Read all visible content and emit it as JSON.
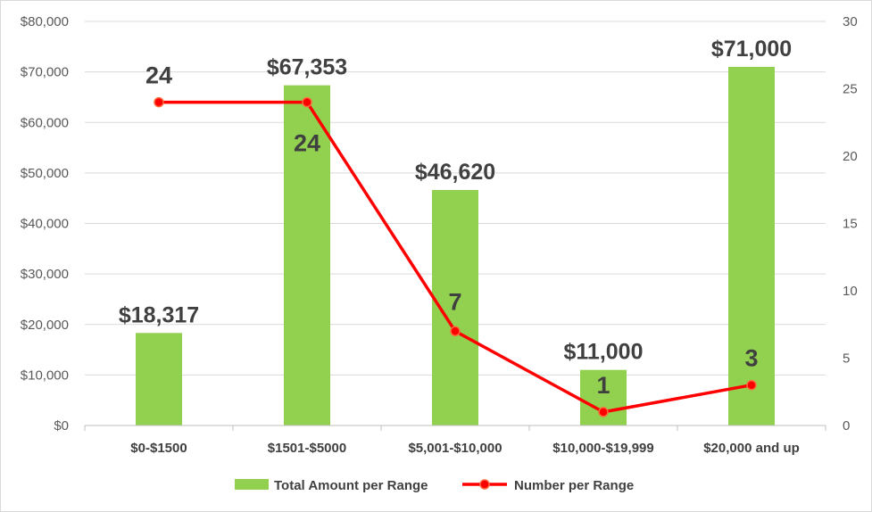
{
  "chart_data": {
    "type": "bar",
    "title": "",
    "xlabel": "",
    "ylabel": "",
    "y2label": "",
    "categories": [
      "$0-$1500",
      "$1501-$5000",
      "$5,001-$10,000",
      "$10,000-$19,999",
      "$20,000 and up"
    ],
    "series": [
      {
        "name": "Total Amount per Range",
        "type": "bar",
        "axis": "left",
        "color": "#92d050",
        "values": [
          18317,
          67353,
          46620,
          11000,
          71000
        ],
        "labels": [
          "$18,317",
          "$67,353",
          "$46,620",
          "$11,000",
          "$71,000"
        ]
      },
      {
        "name": "Number per Range",
        "type": "line",
        "axis": "right",
        "color": "#ff0000",
        "values": [
          24,
          24,
          7,
          1,
          3
        ],
        "labels": [
          "24",
          "24",
          "7",
          "1",
          "3"
        ]
      }
    ],
    "ylim": [
      0,
      80000
    ],
    "y_ticks": [
      "$0",
      "$10,000",
      "$20,000",
      "$30,000",
      "$40,000",
      "$50,000",
      "$60,000",
      "$70,000",
      "$80,000"
    ],
    "y2lim": [
      0,
      30
    ],
    "y2_ticks": [
      "0",
      "5",
      "10",
      "15",
      "20",
      "25",
      "30"
    ],
    "grid": true,
    "legend": "bottom"
  }
}
